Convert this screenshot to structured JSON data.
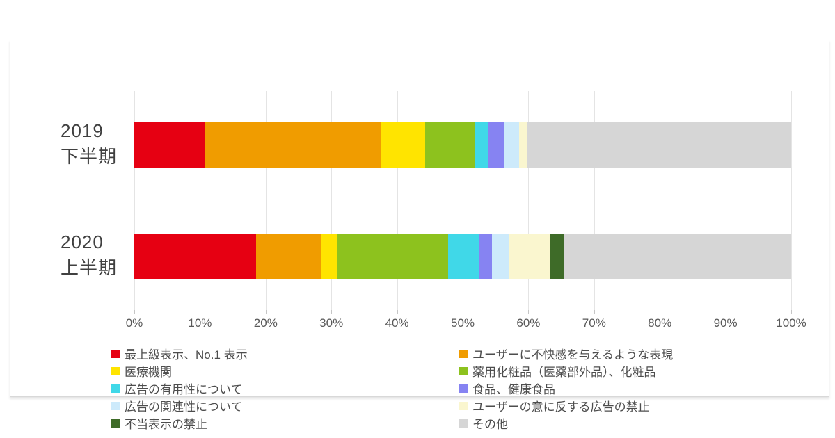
{
  "chart_data": {
    "type": "bar",
    "orientation": "horizontal",
    "stacked": true,
    "grid": true,
    "legend_position": "bottom-two-columns",
    "xlim": [
      0,
      100
    ],
    "x_ticks": [
      "0%",
      "10%",
      "20%",
      "30%",
      "40%",
      "50%",
      "60%",
      "70%",
      "80%",
      "90%",
      "100%"
    ],
    "categories": [
      {
        "line1": "2019",
        "line2": "下半期"
      },
      {
        "line1": "2020",
        "line2": "上半期"
      }
    ],
    "series": [
      {
        "name": "最上級表示、No.1 表示",
        "color": "#e60012",
        "values": [
          10.8,
          18.5
        ]
      },
      {
        "name": "ユーザーに不快感を与えるような表現",
        "color": "#f09c00",
        "values": [
          26.8,
          9.9
        ]
      },
      {
        "name": "医療機関",
        "color": "#ffe400",
        "values": [
          6.7,
          2.4
        ]
      },
      {
        "name": "薬用化粧品（医薬部外品）、化粧品",
        "color": "#8dc21e",
        "values": [
          7.6,
          17.0
        ]
      },
      {
        "name": "広告の有用性について",
        "color": "#40d8e8",
        "values": [
          1.9,
          4.8
        ]
      },
      {
        "name": "食品、健康食品",
        "color": "#8683f2",
        "values": [
          2.6,
          1.9
        ]
      },
      {
        "name": "広告の関連性について",
        "color": "#cdeafb",
        "values": [
          2.2,
          2.6
        ]
      },
      {
        "name": "ユーザーの意に反する広告の禁止",
        "color": "#faf6cf",
        "values": [
          1.2,
          6.2
        ]
      },
      {
        "name": "不当表示の禁止",
        "color": "#3e6b28",
        "values": [
          0.0,
          2.2
        ]
      },
      {
        "name": "その他",
        "color": "#d6d6d6",
        "values": [
          40.2,
          34.5
        ]
      }
    ]
  }
}
